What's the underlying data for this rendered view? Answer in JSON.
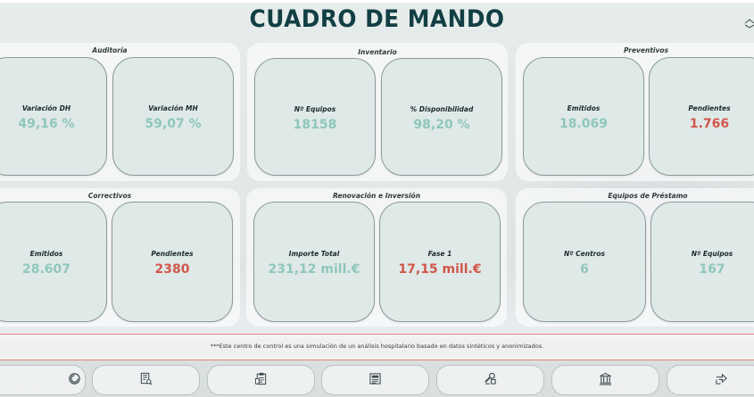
{
  "header": {
    "title": "CUADRO DE MANDO",
    "corner_icon": "collapse-icon"
  },
  "panels": [
    {
      "title": "Auditoría",
      "cards": [
        {
          "label": "Variación DH",
          "value": "49,16 %",
          "alert": false
        },
        {
          "label": "Variación MH",
          "value": "59,07 %",
          "alert": false
        }
      ]
    },
    {
      "title": "Inventario",
      "cards": [
        {
          "label": "Nº Equipos",
          "value": "18158",
          "alert": false
        },
        {
          "label": "% Disponibilidad",
          "value": "98,20 %",
          "alert": false
        }
      ]
    },
    {
      "title": "Preventivos",
      "cards": [
        {
          "label": "Emitidos",
          "value": "18.069",
          "alert": false
        },
        {
          "label": "Pendientes",
          "value": "1.766",
          "alert": true
        }
      ]
    },
    {
      "title": "Correctivos",
      "cards": [
        {
          "label": "Emitidos",
          "value": "28.607",
          "alert": false
        },
        {
          "label": "Pendientes",
          "value": "2380",
          "alert": true
        }
      ]
    },
    {
      "title": "Renovación e Inversión",
      "cards": [
        {
          "label": "Importe Total",
          "value": "231,12 mill.€",
          "alert": false
        },
        {
          "label": "Fase 1",
          "value": "17,15 mill.€",
          "alert": true
        }
      ]
    },
    {
      "title": "Equipos de Préstamo",
      "cards": [
        {
          "label": "Nº Centros",
          "value": "6",
          "alert": false
        },
        {
          "label": "Nº Equipos",
          "value": "167",
          "alert": false
        }
      ]
    }
  ],
  "footer": {
    "disclaimer": "***Este centro de control es una simulación de un análisis hospitalario basado en datos sintéticos y anonimizados."
  },
  "nav": [
    {
      "icon": "home-spiral-icon"
    },
    {
      "icon": "audit-document-icon"
    },
    {
      "icon": "inventory-clipboard-icon"
    },
    {
      "icon": "preventive-report-icon"
    },
    {
      "icon": "corrective-wrench-icon"
    },
    {
      "icon": "investment-building-icon"
    },
    {
      "icon": "loan-exchange-icon"
    }
  ],
  "colors": {
    "title": "#123f44",
    "value_ok": "#8fc7b9",
    "value_alert": "#d1564a",
    "card_bg": "#dfe9e7"
  }
}
